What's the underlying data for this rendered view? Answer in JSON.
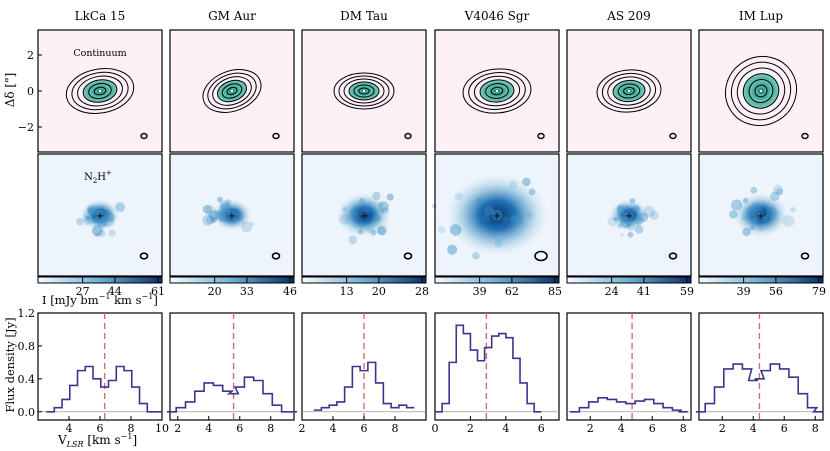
{
  "figure": {
    "ylabel_top": "Δδ [\"]",
    "ylabel_bottom": "Flux density [Jy]",
    "xlabel_bottom": "V",
    "xlabel_bottom_sub": "LSR",
    "xlabel_bottom_unit": "[km s",
    "xlabel_bottom_exp": "−1",
    "xlabel_bottom_end": "]",
    "colorbar_label": "I [mJy bm",
    "colorbar_label_exp": "−1",
    "colorbar_label_mid": " km s",
    "colorbar_label_exp2": "−1",
    "colorbar_label_end": "]",
    "continuum_label": "Continuum",
    "n2h_label": "N",
    "n2h_sub": "2",
    "n2h_rest": "H",
    "n2h_sup": "+",
    "top_ticks": [
      "2",
      "0",
      "−2"
    ],
    "colors": {
      "continuum_bg": "#fdf0f7",
      "n2h_bg": "#eef4fb",
      "line_color": "#3a3590",
      "dashed_color": "#e8646a",
      "cmap_dark": "#08306b",
      "cmap_light": "#deebf7"
    }
  },
  "chart_data": [
    {
      "type": "line",
      "title": "LkCa 15",
      "systemic_velocity": 6.3,
      "x": [
        2.8,
        3.3,
        3.8,
        4.3,
        4.8,
        5.3,
        5.8,
        6.3,
        6.8,
        7.3,
        7.8,
        8.3,
        8.8,
        9.3,
        9.8
      ],
      "values": [
        0.0,
        0.05,
        0.15,
        0.32,
        0.5,
        0.55,
        0.4,
        0.3,
        0.38,
        0.55,
        0.5,
        0.3,
        0.1,
        0.0,
        0.0
      ],
      "xlim": [
        2,
        10
      ],
      "ylim": [
        -0.1,
        1.2
      ],
      "xticks": [
        "4",
        "6",
        "8",
        "10"
      ],
      "yticks": [
        "0.0",
        "0.4",
        "0.8",
        "1.2"
      ],
      "colorbar_ticks": [
        "27",
        "44",
        "61"
      ],
      "n2h_extent": "compact"
    },
    {
      "type": "line",
      "title": "GM Aur",
      "systemic_velocity": 5.6,
      "x": [
        1.6,
        2.2,
        2.8,
        3.4,
        4.0,
        4.6,
        5.2,
        5.6,
        6.0,
        6.6,
        7.2,
        7.8,
        8.4,
        9.0,
        9.4
      ],
      "values": [
        0.0,
        0.05,
        0.12,
        0.25,
        0.35,
        0.32,
        0.25,
        0.22,
        0.3,
        0.42,
        0.38,
        0.22,
        0.08,
        0.0,
        0.0
      ],
      "xlim": [
        1.5,
        9.5
      ],
      "ylim": [
        -0.1,
        1.2
      ],
      "xticks": [
        "2",
        "4",
        "6",
        "8"
      ],
      "yticks": [],
      "colorbar_ticks": [
        "20",
        "33",
        "46"
      ],
      "n2h_extent": "compact"
    },
    {
      "type": "line",
      "title": "DM Tau",
      "systemic_velocity": 6.0,
      "x": [
        3.0,
        3.5,
        4.0,
        4.5,
        5.0,
        5.5,
        6.0,
        6.5,
        7.0,
        7.5,
        8.0,
        8.5,
        9.0
      ],
      "values": [
        0.02,
        0.05,
        0.08,
        0.12,
        0.3,
        0.55,
        0.5,
        0.6,
        0.35,
        0.1,
        0.05,
        0.08,
        0.05
      ],
      "xlim": [
        2,
        10
      ],
      "ylim": [
        -0.1,
        1.2
      ],
      "xticks": [
        "2",
        "4",
        "6",
        "8"
      ],
      "yticks": [],
      "colorbar_ticks": [
        "13",
        "20",
        "28"
      ],
      "n2h_extent": "medium"
    },
    {
      "type": "line",
      "title": "V4046 Sgr",
      "systemic_velocity": 2.9,
      "x": [
        0.2,
        0.6,
        1.0,
        1.4,
        1.8,
        2.2,
        2.6,
        3.0,
        3.4,
        3.8,
        4.2,
        4.6,
        5.0,
        5.4,
        5.8
      ],
      "values": [
        0.0,
        0.1,
        0.6,
        1.05,
        0.95,
        0.75,
        0.62,
        0.78,
        0.92,
        0.95,
        0.9,
        0.65,
        0.35,
        0.1,
        0.0
      ],
      "xlim": [
        0,
        7
      ],
      "ylim": [
        -0.1,
        1.2
      ],
      "xticks": [
        "0",
        "2",
        "4",
        "6"
      ],
      "yticks": [],
      "colorbar_ticks": [
        "39",
        "62",
        "85"
      ],
      "n2h_extent": "extended"
    },
    {
      "type": "line",
      "title": "AS 209",
      "systemic_velocity": 4.7,
      "x": [
        1.0,
        1.6,
        2.2,
        2.8,
        3.4,
        4.0,
        4.6,
        5.2,
        5.8,
        6.4,
        7.0,
        7.6,
        8.0
      ],
      "values": [
        0.0,
        0.05,
        0.12,
        0.17,
        0.15,
        0.12,
        0.1,
        0.13,
        0.15,
        0.1,
        0.05,
        0.02,
        0.0
      ],
      "xlim": [
        0.5,
        8.5
      ],
      "ylim": [
        -0.1,
        1.2
      ],
      "xticks": [
        "2",
        "4",
        "6",
        "8"
      ],
      "yticks": [],
      "colorbar_ticks": [
        "24",
        "41",
        "59"
      ],
      "n2h_extent": "compact"
    },
    {
      "type": "line",
      "title": "IM Lup",
      "systemic_velocity": 4.4,
      "x": [
        0.6,
        1.2,
        1.8,
        2.4,
        3.0,
        3.6,
        4.0,
        4.4,
        4.8,
        5.4,
        6.0,
        6.6,
        7.2,
        7.8,
        8.2
      ],
      "values": [
        0.0,
        0.1,
        0.3,
        0.52,
        0.58,
        0.52,
        0.38,
        0.4,
        0.5,
        0.58,
        0.52,
        0.42,
        0.22,
        0.05,
        0.0
      ],
      "xlim": [
        0.5,
        8.5
      ],
      "ylim": [
        -0.1,
        1.2
      ],
      "xticks": [
        "2",
        "4",
        "6",
        "8"
      ],
      "yticks": [],
      "colorbar_ticks": [
        "39",
        "56",
        "79"
      ],
      "n2h_extent": "medium"
    }
  ]
}
